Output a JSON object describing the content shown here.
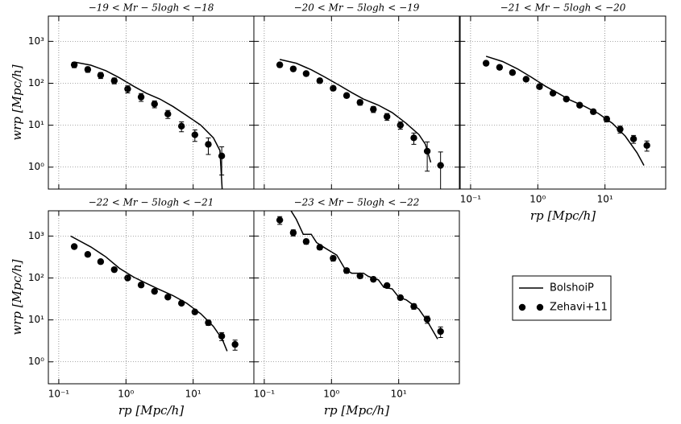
{
  "chart_data": [
    {
      "type": "line",
      "title": "−19 < Mr − 5logh < −18",
      "ylabel": "wrp  [Mpc/h]",
      "xscale": "log",
      "yscale": "log",
      "grid": true,
      "xlim": [
        0.07,
        80
      ],
      "ylim": [
        0.3,
        4000
      ],
      "xticks": [
        0.1,
        1,
        10
      ],
      "yticks": [
        {
          "value": 1,
          "label": "10⁰"
        },
        {
          "value": 10,
          "label": "10¹"
        },
        {
          "value": 100,
          "label": "10²"
        },
        {
          "value": 1000,
          "label": "10³"
        }
      ],
      "series": [
        {
          "name": "BolshoiP",
          "kind": "line",
          "color": "#000000",
          "x": [
            0.17,
            0.3,
            0.5,
            0.8,
            1.3,
            2,
            3.2,
            5,
            8,
            13,
            20,
            25,
            27
          ],
          "values": [
            320,
            270,
            200,
            135,
            85,
            58,
            42,
            28,
            17,
            10,
            5,
            2.5,
            0.3
          ]
        },
        {
          "name": "Zehavi+11",
          "kind": "scatter",
          "color": "#000000",
          "x": [
            0.17,
            0.27,
            0.42,
            0.67,
            1.06,
            1.68,
            2.66,
            4.2,
            6.7,
            10.6,
            16.8,
            26.6
          ],
          "values": [
            275,
            213,
            155,
            115,
            73,
            47,
            32,
            18.5,
            9.5,
            5.9,
            3.5,
            1.85
          ],
          "errors": [
            40,
            30,
            25,
            18,
            14,
            10,
            6,
            4,
            2.5,
            1.8,
            1.5,
            1.2
          ]
        }
      ]
    },
    {
      "type": "line",
      "title": "−20 < Mr − 5logh < −19",
      "xscale": "log",
      "yscale": "log",
      "grid": true,
      "xlim": [
        0.07,
        80
      ],
      "ylim": [
        0.3,
        4000
      ],
      "xticks": [
        0.1,
        1,
        10
      ],
      "yticks": [
        1,
        10,
        100,
        1000
      ],
      "series": [
        {
          "name": "BolshoiP",
          "kind": "line",
          "color": "#000000",
          "x": [
            0.17,
            0.3,
            0.5,
            0.8,
            1.3,
            2,
            3,
            5,
            8,
            13,
            20,
            25,
            30
          ],
          "values": [
            370,
            300,
            210,
            140,
            90,
            60,
            42,
            30,
            20,
            11,
            6,
            3.5,
            1.3
          ]
        },
        {
          "name": "Zehavi+11",
          "kind": "scatter",
          "color": "#000000",
          "x": [
            0.17,
            0.27,
            0.42,
            0.67,
            1.06,
            1.68,
            2.66,
            4.2,
            6.7,
            10.6,
            16.8,
            26.6,
            42
          ],
          "values": [
            275,
            220,
            170,
            115,
            76,
            51,
            35,
            24,
            16,
            10,
            5,
            2.4,
            1.1
          ],
          "errors": [
            30,
            25,
            20,
            14,
            9,
            6,
            5,
            4,
            3,
            2,
            1.5,
            1.6,
            1.2
          ]
        }
      ]
    },
    {
      "type": "line",
      "title": "−21 < Mr − 5logh < −20",
      "xlabel": "rp  [Mpc/h]",
      "xscale": "log",
      "yscale": "log",
      "grid": true,
      "xlim": [
        0.07,
        80
      ],
      "ylim": [
        0.3,
        4000
      ],
      "xticks": [
        {
          "value": 0.1,
          "label": "10⁻¹"
        },
        {
          "value": 1,
          "label": "10⁰"
        },
        {
          "value": 10,
          "label": "10¹"
        }
      ],
      "yticks": [
        1,
        10,
        100,
        1000
      ],
      "series": [
        {
          "name": "BolshoiP",
          "kind": "line",
          "color": "#000000",
          "x": [
            0.17,
            0.3,
            0.5,
            0.8,
            1.3,
            2,
            3,
            5,
            8,
            13,
            20,
            30,
            38
          ],
          "values": [
            440,
            330,
            220,
            140,
            85,
            58,
            40,
            28,
            19,
            11,
            5.5,
            2.2,
            1.1
          ]
        },
        {
          "name": "Zehavi+11",
          "kind": "scatter",
          "color": "#000000",
          "x": [
            0.17,
            0.27,
            0.42,
            0.67,
            1.06,
            1.68,
            2.66,
            4.2,
            6.7,
            10.6,
            16.8,
            26.6,
            42
          ],
          "values": [
            300,
            240,
            180,
            125,
            83,
            58,
            42,
            30,
            21,
            14,
            8,
            4.7,
            3.3
          ],
          "errors": [
            30,
            25,
            18,
            12,
            8,
            5,
            4,
            3,
            2.5,
            2,
            1.5,
            1,
            0.9
          ]
        }
      ]
    },
    {
      "type": "line",
      "title": "−22 < Mr − 5logh < −21",
      "xlabel": "rp  [Mpc/h]",
      "ylabel": "wrp  [Mpc/h]",
      "xscale": "log",
      "yscale": "log",
      "grid": true,
      "xlim": [
        0.07,
        80
      ],
      "ylim": [
        0.3,
        4000
      ],
      "xticks": [
        {
          "value": 0.1,
          "label": "10⁻¹"
        },
        {
          "value": 1,
          "label": "10⁰"
        },
        {
          "value": 10,
          "label": "10¹"
        }
      ],
      "yticks": [
        {
          "value": 1,
          "label": "10⁰"
        },
        {
          "value": 10,
          "label": "10¹"
        },
        {
          "value": 100,
          "label": "10²"
        },
        {
          "value": 1000,
          "label": "10³"
        }
      ],
      "series": [
        {
          "name": "BolshoiP",
          "kind": "line",
          "color": "#000000",
          "x": [
            0.15,
            0.3,
            0.5,
            0.8,
            1.3,
            2,
            3,
            5,
            8,
            13,
            20,
            27,
            32
          ],
          "values": [
            1000,
            550,
            320,
            170,
            105,
            75,
            55,
            38,
            25,
            14,
            7,
            3.5,
            1.8
          ]
        },
        {
          "name": "Zehavi+11",
          "kind": "scatter",
          "color": "#000000",
          "x": [
            0.17,
            0.27,
            0.42,
            0.67,
            1.06,
            1.68,
            2.66,
            4.2,
            6.7,
            10.6,
            16.8,
            26.6,
            42
          ],
          "values": [
            560,
            365,
            245,
            158,
            100,
            68,
            48,
            35,
            25,
            15.5,
            8.6,
            4.1,
            2.6
          ],
          "errors": [
            60,
            40,
            25,
            16,
            10,
            6,
            4,
            3,
            2,
            1.5,
            1.2,
            0.9,
            0.7
          ]
        }
      ]
    },
    {
      "type": "line",
      "title": "−23 < Mr − 5logh < −22",
      "xlabel": "rp  [Mpc/h]",
      "xscale": "log",
      "yscale": "log",
      "grid": true,
      "legend": "right",
      "xlim": [
        0.07,
        80
      ],
      "ylim": [
        0.3,
        4000
      ],
      "xticks": [
        {
          "value": 0.1,
          "label": "10⁻¹"
        },
        {
          "value": 1,
          "label": "10⁰"
        },
        {
          "value": 10,
          "label": "10¹"
        }
      ],
      "yticks": [
        1,
        10,
        100,
        1000
      ],
      "series": [
        {
          "name": "BolshoiP",
          "kind": "line",
          "color": "#000000",
          "x": [
            0.25,
            0.3,
            0.38,
            0.5,
            0.6,
            0.8,
            1.2,
            1.6,
            2,
            3,
            3.5,
            5,
            6,
            8,
            10,
            13,
            20,
            27,
            38
          ],
          "values": [
            4000,
            2500,
            1100,
            1100,
            700,
            520,
            350,
            160,
            130,
            130,
            110,
            90,
            60,
            55,
            35,
            30,
            18,
            9,
            3.5
          ]
        },
        {
          "name": "Zehavi+11",
          "kind": "scatter",
          "color": "#000000",
          "x": [
            0.17,
            0.27,
            0.42,
            0.67,
            1.06,
            1.68,
            2.66,
            4.2,
            6.7,
            10.6,
            16.8,
            26.6,
            42
          ],
          "values": [
            2400,
            1200,
            740,
            540,
            295,
            150,
            112,
            93,
            66,
            34,
            21,
            10.3,
            5.3
          ],
          "errors": [
            500,
            200,
            100,
            70,
            40,
            20,
            14,
            10,
            7,
            4,
            3,
            2,
            1.5
          ]
        }
      ]
    }
  ]
}
